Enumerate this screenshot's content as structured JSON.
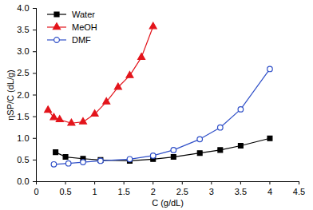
{
  "chart_data": {
    "type": "line",
    "x_label": "C (g/dL)",
    "y_label": "ηSP/C (dL/g)",
    "xlim": [
      0,
      4.5
    ],
    "ylim": [
      0,
      4.0
    ],
    "xticks": [
      0,
      0.5,
      1,
      1.5,
      2,
      2.5,
      3,
      3.5,
      4,
      4.5
    ],
    "yticks": [
      {
        "value": 0,
        "label": "0.0"
      },
      0.5,
      {
        "value": 1,
        "label": "1.0"
      },
      1.5,
      {
        "value": 2,
        "label": "2.0"
      },
      2.5,
      {
        "value": 3,
        "label": "3.0"
      },
      3.5,
      {
        "value": 4,
        "label": "4.0"
      }
    ],
    "grid": false,
    "legend": "upper left",
    "series": [
      {
        "name": "Water",
        "color": "#000000",
        "marker": "square",
        "line_style": "solid",
        "x": [
          0.33,
          0.5,
          0.8,
          1.1,
          1.6,
          2.0,
          2.35,
          2.8,
          3.15,
          3.5,
          4.0
        ],
        "values": [
          0.68,
          0.57,
          0.53,
          0.5,
          0.48,
          0.52,
          0.57,
          0.66,
          0.73,
          0.83,
          1.0
        ]
      },
      {
        "name": "MeOH",
        "color": "#e3141b",
        "marker": "triangle",
        "line_style": "solid",
        "x": [
          0.2,
          0.3,
          0.4,
          0.6,
          0.8,
          1.0,
          1.2,
          1.4,
          1.6,
          1.8,
          2.0
        ],
        "values": [
          1.65,
          1.48,
          1.43,
          1.35,
          1.38,
          1.56,
          1.84,
          2.18,
          2.45,
          2.87,
          3.58
        ]
      },
      {
        "name": "DMF",
        "color": "#3050c8",
        "marker": "circle-open",
        "line_style": "solid",
        "x": [
          0.3,
          0.55,
          0.8,
          1.1,
          1.6,
          2.0,
          2.35,
          2.8,
          3.15,
          3.5,
          4.0
        ],
        "values": [
          0.4,
          0.42,
          0.45,
          0.48,
          0.52,
          0.6,
          0.73,
          0.98,
          1.25,
          1.67,
          2.6
        ]
      }
    ]
  }
}
